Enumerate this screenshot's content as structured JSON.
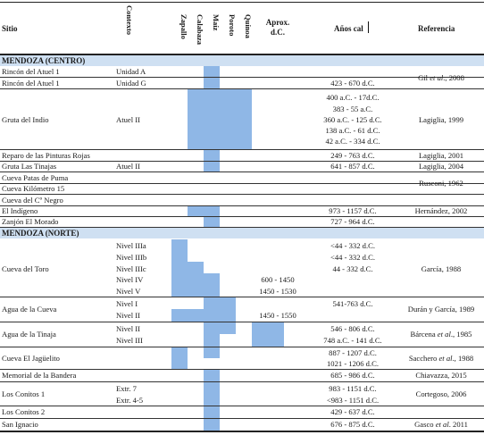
{
  "headers": {
    "sitio": "Sitio",
    "contexto": "Contexto",
    "zapallo": "Zapallo",
    "calabaza": "Calabaza",
    "maiz": "Maíz",
    "poroto": "Poroto",
    "quinoa": "Quínoa",
    "aprox_1": "Aprox.",
    "aprox_2": "d.C.",
    "anos": "Años cal",
    "referencia": "Referencia"
  },
  "sections": {
    "centro": "MENDOZA (CENTRO)",
    "norte": "MENDOZA (NORTE)"
  },
  "colors": {
    "band": "#cfe0f2",
    "presence": "#8fb7e6"
  },
  "sites": [
    "Rincón del Atuel 1",
    "Rincón del Atuel 1",
    "Gruta del Indio",
    "Reparo de las Pinturas Rojas",
    "Gruta Las Tinajas",
    "Cueva Patas de Puma",
    "Cueva Kilómetro 15",
    "Cueva del Cº Negro",
    "El Indígeno",
    "Zanjón El Morado",
    "Cueva del Toro",
    "Agua de la Cueva",
    "Agua de la Tinaja",
    "Cueva El Jagüelito",
    "Memorial de la Bandera",
    "Los Conitos 1",
    "Los Conitos 2",
    "San Ignacio"
  ],
  "contexts": [
    "Unidad A",
    "Unidad G",
    "Atuel II",
    "Atuel II",
    "Nivel IIIa",
    "Nivel IIIb",
    "Nivel IIIc",
    "Nivel IV",
    "Nivel V",
    "Nivel I",
    "Nivel II",
    "Nivel II",
    "Nivel III",
    "Extr. 7",
    "Extr. 4-5"
  ],
  "aprox": [
    "600 - 1450",
    "1450 - 1530",
    "1450 - 1550"
  ],
  "dates": [
    "423 - 670 d.C.",
    "400 a.C. - 17d.C.",
    "383 - 55 a.C.",
    "360 a.C. - 125 d.C.",
    "138 a.C. - 61 d.C.",
    "42 a.C. - 334 d.C.",
    "249 - 763 d.C.",
    "641 - 857 d.C.",
    "973 - 1157 d.C.",
    "727 - 964 d.C.",
    "<44 - 332 d.C.",
    "<44 - 332 d.C.",
    "44 - 332 d.C.",
    "541-763 d.C.",
    "546 - 806 d.C.",
    "748 a.C. - 141 d.C.",
    "887 - 1207 d.C.",
    "1021 - 1206 d.C.",
    "685 - 986 d.C.",
    "983 - 1151 d.C.",
    "<983 - 1151 d.C.",
    "429 - 637 d.C.",
    "676 - 875 d.C."
  ],
  "refs": [
    {
      "pre": "Gil ",
      "em": "et al",
      "post": "., 2008"
    },
    {
      "pre": "Lagiglia, 1999",
      "em": "",
      "post": ""
    },
    {
      "pre": "Lagiglia, 2001",
      "em": "",
      "post": ""
    },
    {
      "pre": "Lagiglia, 2004",
      "em": "",
      "post": ""
    },
    {
      "pre": "Rusconi, 1962",
      "em": "",
      "post": ""
    },
    {
      "pre": "Hernández, 2002",
      "em": "",
      "post": ""
    },
    {
      "pre": "García, 1988",
      "em": "",
      "post": ""
    },
    {
      "pre": "Durán y García, 1989",
      "em": "",
      "post": ""
    },
    {
      "pre": "Bárcena ",
      "em": "et al",
      "post": "., 1985"
    },
    {
      "pre": "Sacchero ",
      "em": "et al",
      "post": "., 1988"
    },
    {
      "pre": "Chiavazza, 2015",
      "em": "",
      "post": ""
    },
    {
      "pre": "Cortegoso, 2006",
      "em": "",
      "post": ""
    },
    {
      "pre": "Gasco ",
      "em": "et al",
      "post": ". 2011"
    }
  ]
}
